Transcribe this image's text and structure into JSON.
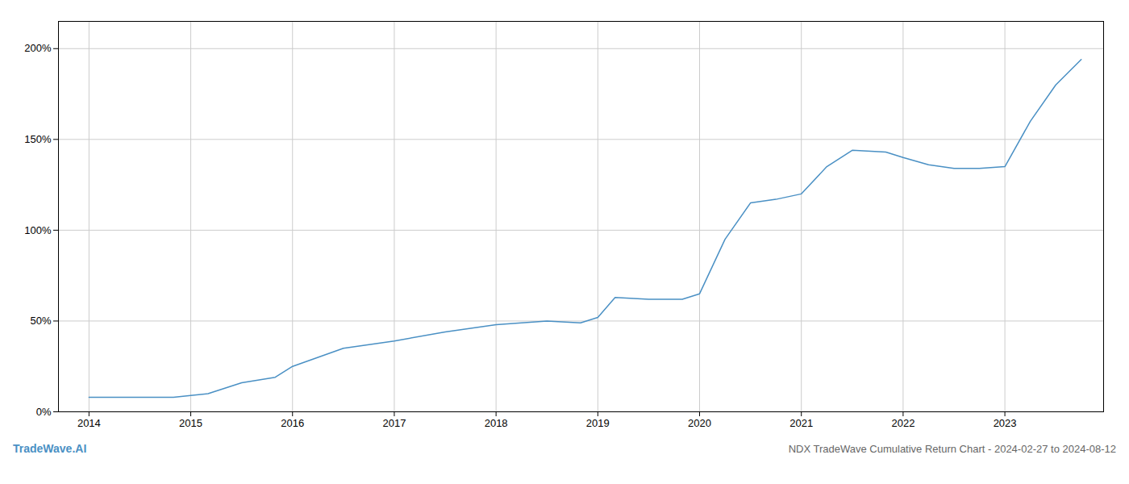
{
  "chart_data": {
    "type": "line",
    "title": "NDX TradeWave Cumulative Return Chart - 2024-02-27 to 2024-08-12",
    "annotations": [
      "TradeWave.AI"
    ],
    "color": "#4a90c4",
    "x": [
      2014.0,
      2014.5,
      2014.83,
      2015.0,
      2015.17,
      2015.5,
      2015.83,
      2016.0,
      2016.5,
      2017.0,
      2017.5,
      2018.0,
      2018.5,
      2018.83,
      2019.0,
      2019.17,
      2019.5,
      2019.83,
      2020.0,
      2020.25,
      2020.5,
      2020.75,
      2021.0,
      2021.25,
      2021.5,
      2021.83,
      2022.0,
      2022.25,
      2022.5,
      2022.75,
      2023.0,
      2023.25,
      2023.5,
      2023.75
    ],
    "values": [
      8,
      8,
      8,
      9,
      10,
      16,
      19,
      25,
      35,
      39,
      44,
      48,
      50,
      49,
      52,
      63,
      62,
      62,
      65,
      95,
      115,
      117,
      120,
      135,
      144,
      143,
      140,
      136,
      134,
      134,
      135,
      160,
      180,
      194
    ],
    "xlim": [
      2013.7,
      2023.97
    ],
    "xticks": [
      2014,
      2015,
      2016,
      2017,
      2018,
      2019,
      2020,
      2021,
      2022,
      2023
    ],
    "ylim": [
      0,
      215
    ],
    "yticks": [
      {
        "value": 0,
        "label": "0%"
      },
      {
        "value": 50,
        "label": "50%"
      },
      {
        "value": 100,
        "label": "100%"
      },
      {
        "value": 150,
        "label": "150%"
      },
      {
        "value": 200,
        "label": "200%"
      }
    ],
    "grid": true
  }
}
